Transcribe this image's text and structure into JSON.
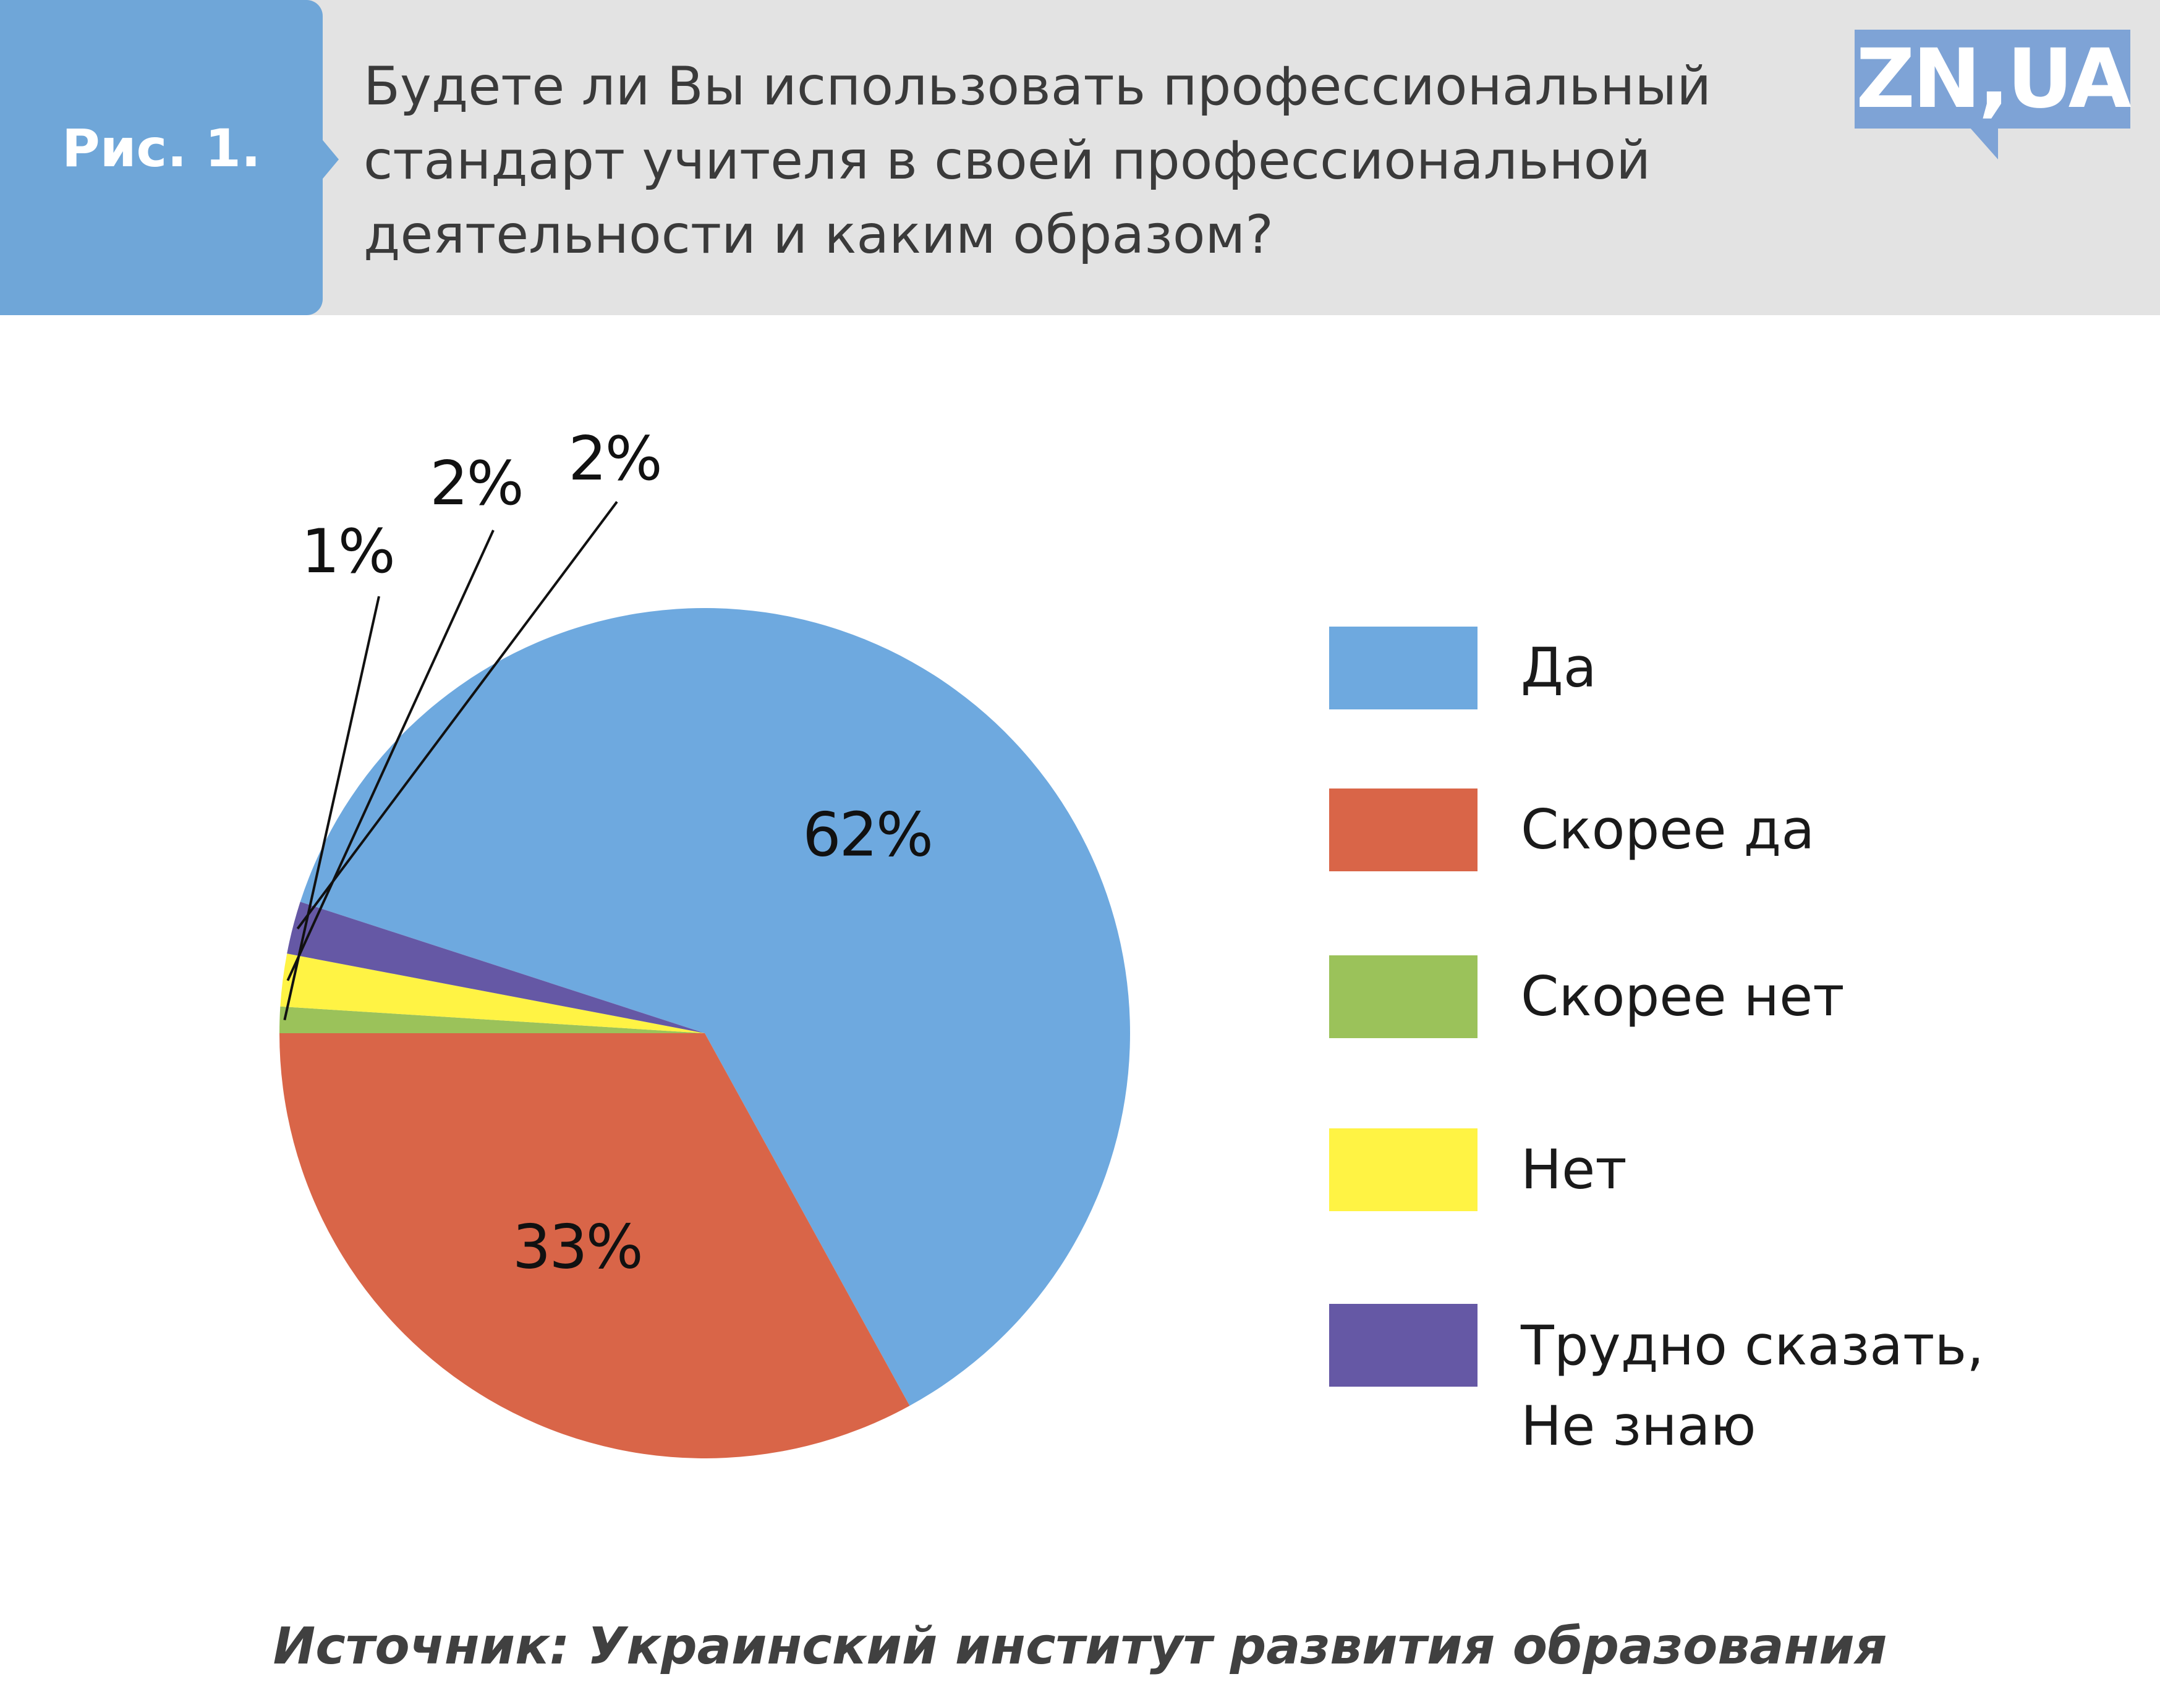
{
  "header": {
    "figure_label": "Рис. 1.",
    "question": "Будете ли Вы использовать профессиональный стандарт учителя в своей профессиональной деятельности и каким образом?",
    "logo": "ZN,UA"
  },
  "chart_data": {
    "type": "pie",
    "categories": [
      "Да",
      "Скорее да",
      "Скорее нет",
      "Нет",
      "Трудно сказать, Не знаю"
    ],
    "values": [
      62,
      33,
      1,
      2,
      2
    ],
    "value_labels": [
      "62%",
      "33%",
      "1%",
      "2%",
      "2%"
    ],
    "colors": [
      "#6ea9df",
      "#d96548",
      "#9bc25a",
      "#fff344",
      "#6558a5"
    ],
    "legend_position": "right"
  },
  "legend": {
    "items": [
      {
        "label": "Да",
        "color": "#6ea9df"
      },
      {
        "label": "Скорее да",
        "color": "#d96548"
      },
      {
        "label": "Скорее нет",
        "color": "#9bc25a"
      },
      {
        "label": "Нет",
        "color": "#fff344"
      },
      {
        "label_line1": "Трудно сказать,",
        "label_line2": "Не знаю",
        "color": "#6558a5"
      }
    ]
  },
  "footer": {
    "source": "Источник: Украинский институт развития образования"
  }
}
